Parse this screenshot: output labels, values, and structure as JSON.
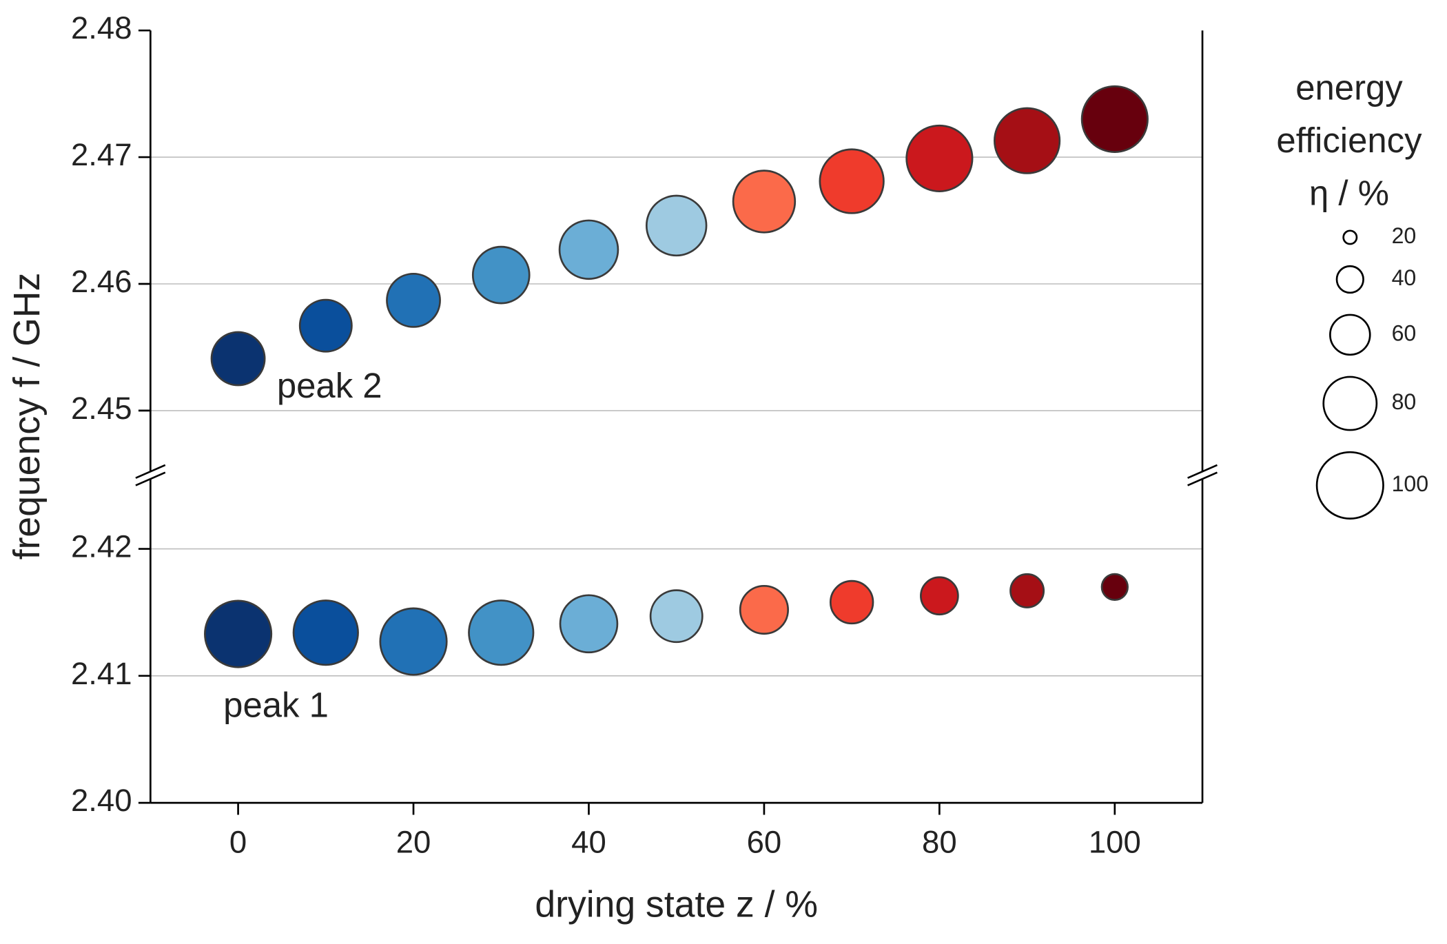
{
  "chart_data": {
    "type": "bubble",
    "x_label": "drying state z / %",
    "y_label": "frequency f / GHz",
    "xlim": [
      -10,
      110
    ],
    "xticks": [
      0,
      20,
      40,
      60,
      80,
      100
    ],
    "ylim": [
      2.4,
      2.48
    ],
    "ybreak": [
      2.4258,
      2.4449
    ],
    "yticks": [
      {
        "value": 2.4,
        "label": "2.40"
      },
      2.41,
      2.42,
      2.45,
      2.46,
      2.47,
      2.48
    ],
    "grid": true,
    "series": [
      {
        "name": "peak 2",
        "x": [
          0,
          10,
          20,
          30,
          40,
          50,
          60,
          70,
          80,
          90,
          100
        ],
        "values": [
          2.4541,
          2.4567,
          2.4587,
          2.4607,
          2.4627,
          2.4646,
          2.4665,
          2.4681,
          2.4699,
          2.4713,
          2.473
        ],
        "sizes": [
          80,
          78,
          80,
          85,
          88,
          90,
          93,
          96,
          99,
          98,
          99
        ],
        "colors": [
          "#0b3370",
          "#0a4f9c",
          "#2171b5",
          "#4292c6",
          "#6baed6",
          "#9ecae1",
          "#fb6a4a",
          "#ef3b2c",
          "#cb181d",
          "#a50f15",
          "#67000d"
        ]
      },
      {
        "name": "peak 1",
        "x": [
          0,
          10,
          20,
          30,
          40,
          50,
          60,
          70,
          80,
          90,
          100
        ],
        "values": [
          2.4133,
          2.4134,
          2.4127,
          2.4134,
          2.4141,
          2.4147,
          2.4152,
          2.4158,
          2.4163,
          2.4167,
          2.417
        ],
        "sizes": [
          100,
          97,
          100,
          97,
          86,
          78,
          72,
          64,
          56,
          50,
          39
        ],
        "colors": [
          "#0b3370",
          "#0a4f9c",
          "#2171b5",
          "#4292c6",
          "#6baed6",
          "#9ecae1",
          "#fb6a4a",
          "#ef3b2c",
          "#cb181d",
          "#a50f15",
          "#67000d"
        ]
      }
    ],
    "size_legend": {
      "title": [
        "energy",
        "efficiency",
        "η / %"
      ],
      "values": [
        20,
        40,
        60,
        80,
        100
      ]
    }
  }
}
